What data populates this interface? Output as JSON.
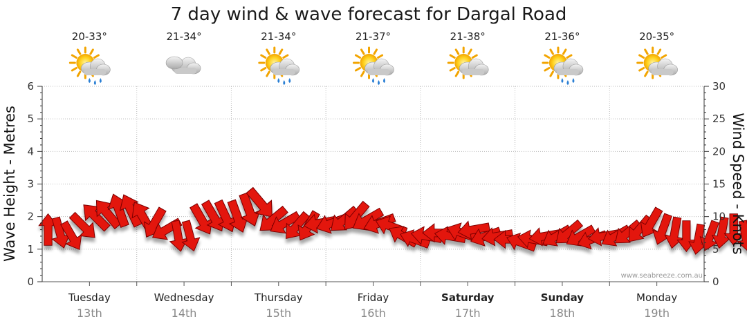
{
  "chart_data": {
    "type": "scatter",
    "title": "7 day wind & wave forecast for Dargal Road",
    "ylabel_left": "Wave Height - Metres",
    "ylabel_right": "Wind Speed - Knots",
    "ylim_left": [
      0,
      6
    ],
    "ylim_right": [
      0,
      30
    ],
    "yticks_left": [
      "0",
      "1",
      "2",
      "3",
      "4",
      "5",
      "6"
    ],
    "yticks_right": [
      "0",
      "5",
      "10",
      "15",
      "20",
      "25",
      "30"
    ],
    "watermark": "www.seabreeze.com.au",
    "grid": true,
    "days": [
      {
        "name": "Tuesday",
        "date": "13th",
        "bold": false,
        "temp": "20-33°",
        "icon": "sun-cloud-rain-icon"
      },
      {
        "name": "Wednesday",
        "date": "14th",
        "bold": false,
        "temp": "21-34°",
        "icon": "cloud-icon"
      },
      {
        "name": "Thursday",
        "date": "15th",
        "bold": false,
        "temp": "21-34°",
        "icon": "sun-cloud-rain-icon"
      },
      {
        "name": "Friday",
        "date": "16th",
        "bold": false,
        "temp": "21-37°",
        "icon": "sun-cloud-rain-icon"
      },
      {
        "name": "Saturday",
        "date": "17th",
        "bold": true,
        "temp": "21-38°",
        "icon": "sun-cloud-icon"
      },
      {
        "name": "Sunday",
        "date": "18th",
        "bold": true,
        "temp": "21-36°",
        "icon": "sun-cloud-rain-icon"
      },
      {
        "name": "Monday",
        "date": "19th",
        "bold": false,
        "temp": "20-35°",
        "icon": "sun-cloud-icon"
      }
    ],
    "series": [
      {
        "x_hours": [
          0,
          3,
          6,
          9,
          12,
          15,
          18,
          21,
          24,
          27,
          30,
          33,
          36,
          39,
          42,
          45,
          48,
          51,
          54,
          57,
          60,
          63,
          66,
          69,
          72,
          75,
          78,
          81,
          84,
          87,
          90,
          93,
          96,
          99,
          102,
          105,
          108,
          111,
          114,
          117,
          120,
          123,
          126,
          129,
          132,
          135,
          138,
          141,
          144,
          147,
          150,
          153,
          156,
          159,
          162,
          165,
          168,
          171,
          174,
          177
        ],
        "wind_knots": [
          8,
          7.5,
          7,
          8.5,
          10,
          10.5,
          11,
          11,
          10,
          9,
          8,
          7,
          7,
          9.5,
          10,
          10,
          10,
          11,
          12,
          9.5,
          9,
          8.5,
          8.5,
          9,
          9,
          9.5,
          10,
          9.5,
          9,
          8.5,
          7,
          6.5,
          7,
          7.5,
          7,
          7.5,
          8,
          7,
          7,
          6.5,
          6,
          6.5,
          7,
          7,
          7.5,
          7,
          6.5,
          7,
          7,
          7.5,
          8,
          9,
          8,
          7.5,
          7,
          6.5,
          7,
          7.5,
          8,
          7
        ],
        "wind_dir_deg": [
          270,
          75,
          60,
          45,
          225,
          230,
          250,
          245,
          240,
          120,
          150,
          80,
          75,
          60,
          60,
          65,
          70,
          70,
          50,
          140,
          150,
          130,
          120,
          170,
          160,
          140,
          130,
          150,
          160,
          200,
          210,
          200,
          190,
          180,
          190,
          200,
          170,
          160,
          170,
          180,
          200,
          190,
          170,
          150,
          140,
          150,
          160,
          170,
          150,
          140,
          130,
          120,
          110,
          100,
          90,
          100,
          110,
          100,
          90,
          80
        ]
      }
    ]
  }
}
